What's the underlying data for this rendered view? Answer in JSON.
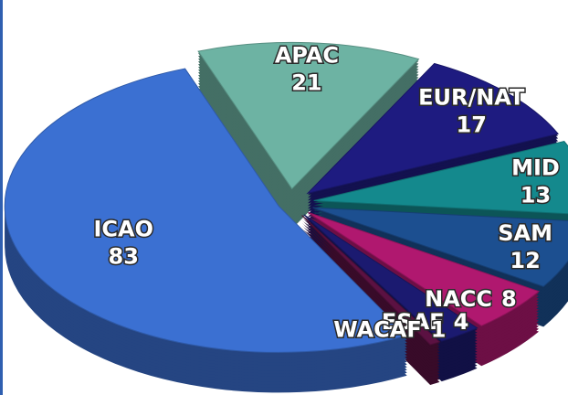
{
  "chart_data": {
    "type": "pie",
    "categories": [
      "APAC",
      "EUR/NAT",
      "MID",
      "SAM",
      "NACC",
      "ESAF",
      "WACAF",
      "ICAO"
    ],
    "values": [
      21,
      17,
      13,
      12,
      8,
      4,
      1,
      83
    ],
    "colors": [
      "#6db3a3",
      "#1e1b80",
      "#14898d",
      "#1c4f90",
      "#b0186f",
      "#1b1a70",
      "#5b1142",
      "#3b70d2"
    ]
  }
}
